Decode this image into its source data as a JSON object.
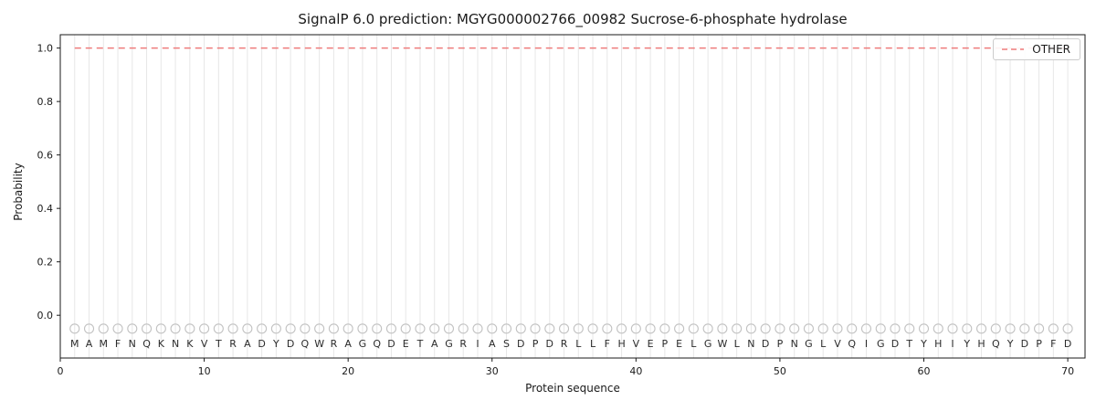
{
  "chart_data": {
    "type": "line",
    "title": "SignalP 6.0 prediction: MGYG000002766_00982 Sucrose-6-phosphate hydrolase",
    "xlabel": "Protein sequence",
    "ylabel": "Probability",
    "x_ticks": [
      0,
      10,
      20,
      30,
      40,
      50,
      60,
      70
    ],
    "y_ticks": [
      0.0,
      0.2,
      0.4,
      0.6,
      0.8,
      1.0
    ],
    "xlim": [
      0,
      71.2
    ],
    "ylim": [
      -0.16,
      1.05
    ],
    "grid": "vertical line at every residue position",
    "legend": {
      "position": "upper right",
      "entries": [
        {
          "label": "OTHER",
          "style": "dashed",
          "color": "#ee7b7b"
        }
      ]
    },
    "sequence": "MAMFNQKNKVTRADYDQWRAGQDETAGRIASDPDRLLFHVEPELGWLNDPNGLVQIGDTYHIYHQYDPFD",
    "series": [
      {
        "name": "OTHER",
        "values": [
          1,
          1,
          1,
          1,
          1,
          1,
          1,
          1,
          1,
          1,
          1,
          1,
          1,
          1,
          1,
          1,
          1,
          1,
          1,
          1,
          1,
          1,
          1,
          1,
          1,
          1,
          1,
          1,
          1,
          1,
          1,
          1,
          1,
          1,
          1,
          1,
          1,
          1,
          1,
          1,
          1,
          1,
          1,
          1,
          1,
          1,
          1,
          1,
          1,
          1,
          1,
          1,
          1,
          1,
          1,
          1,
          1,
          1,
          1,
          1,
          1,
          1,
          1,
          1,
          1,
          1,
          1,
          1,
          1,
          1
        ]
      }
    ],
    "marker_row_y": -0.05,
    "letter_row_y": -0.105,
    "colors": {
      "other_line": "#ee7b7b",
      "grid": "#e7e7e7",
      "marker_outline": "#c2c2c2",
      "spine": "#1a1a1a",
      "text": "#1a1a1a",
      "letter": "#2b2b2b"
    }
  }
}
